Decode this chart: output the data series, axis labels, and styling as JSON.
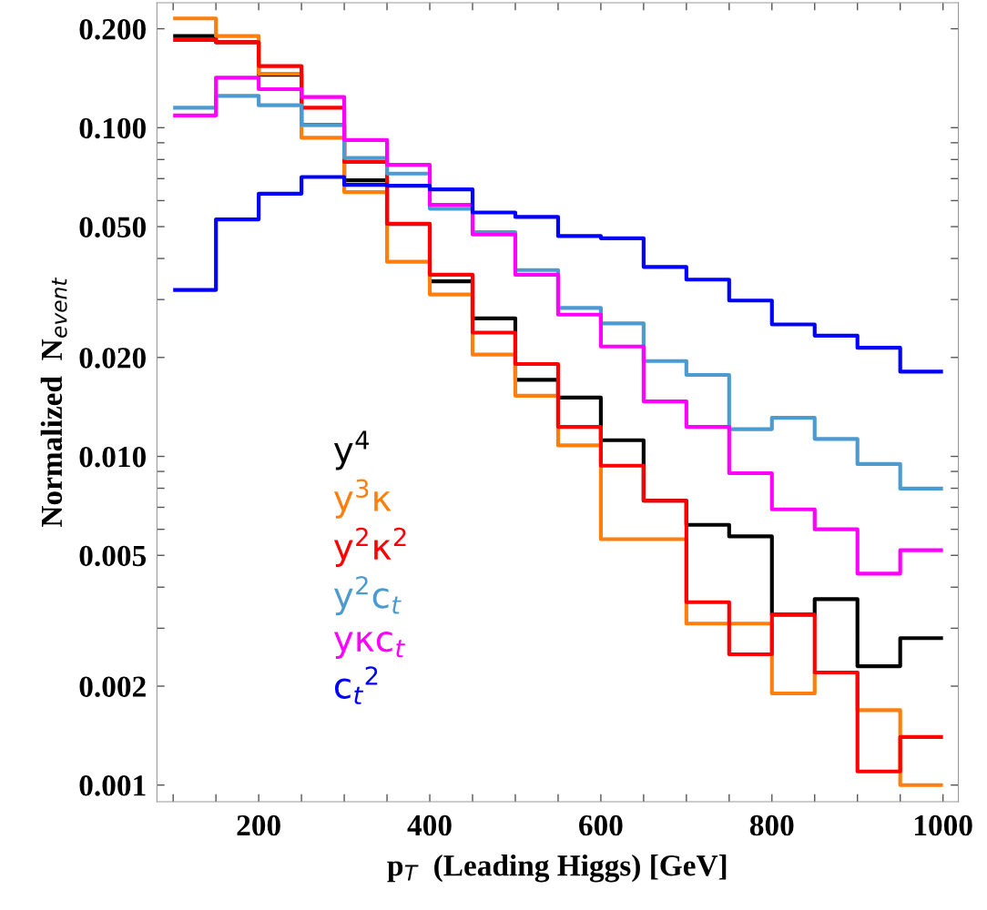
{
  "chart_data": {
    "type": "histogram",
    "xlabel": "p$_{T}$  (Leading Higgs) [GeV]",
    "ylabel": "Normalized  N$_{event}$",
    "bins": [
      100,
      150,
      200,
      250,
      300,
      350,
      400,
      450,
      500,
      550,
      600,
      650,
      700,
      750,
      800,
      850,
      900,
      950,
      1000
    ],
    "series": [
      {
        "name": "y$^{4}$",
        "color": "#000000",
        "values": [
          0.19,
          0.182,
          0.145,
          0.102,
          0.0692,
          0.0509,
          0.0341,
          0.0263,
          0.0171,
          0.0151,
          0.0112,
          0.00733,
          0.00619,
          0.00571,
          0.0033,
          0.00368,
          0.0023,
          0.0028
        ]
      },
      {
        "name": "y$^{3}$κ",
        "color": "#ff7f0e",
        "values": [
          0.215,
          0.19,
          0.146,
          0.0932,
          0.0637,
          0.0391,
          0.0311,
          0.0204,
          0.0153,
          0.0108,
          0.0056,
          0.0056,
          0.0031,
          0.0031,
          0.0019,
          0.0022,
          0.00169,
          0.001
        ]
      },
      {
        "name": "y$^{2}$κ$^{2}$",
        "color": "#ff0000",
        "values": [
          0.185,
          0.182,
          0.154,
          0.115,
          0.0787,
          0.051,
          0.0357,
          0.0238,
          0.0191,
          0.0123,
          0.00937,
          0.00733,
          0.0036,
          0.0025,
          0.0033,
          0.0022,
          0.0011,
          0.0014
        ]
      },
      {
        "name": "y$^{2}$c$_{t}$",
        "color": "#4c9bd0",
        "values": [
          0.115,
          0.125,
          0.117,
          0.102,
          0.0809,
          0.0725,
          0.0567,
          0.0481,
          0.0369,
          0.0283,
          0.0254,
          0.0195,
          0.0177,
          0.0121,
          0.0131,
          0.0113,
          0.00948,
          0.00798
        ]
      },
      {
        "name": "yκc$_{t}$",
        "color": "#ff00ff",
        "values": [
          0.109,
          0.142,
          0.131,
          0.124,
          0.0917,
          0.0771,
          0.0583,
          0.0473,
          0.0357,
          0.027,
          0.0216,
          0.0147,
          0.0123,
          0.00889,
          0.0069,
          0.006,
          0.0044,
          0.00518
        ]
      },
      {
        "name": "c$_{t}$$^{2}$",
        "color": "#0000ff",
        "values": [
          0.0321,
          0.0526,
          0.063,
          0.0708,
          0.067,
          0.0666,
          0.0649,
          0.0552,
          0.0535,
          0.0468,
          0.0461,
          0.0377,
          0.0345,
          0.0298,
          0.0252,
          0.0233,
          0.0214,
          0.0181
        ]
      }
    ],
    "log": "y",
    "xlim": [
      81,
      1018
    ],
    "ylim": [
      0.00089,
      0.24
    ],
    "xticks": [
      {
        "value": 100,
        "label": null
      },
      {
        "value": 150,
        "label": null
      },
      200,
      {
        "value": 250,
        "label": null
      },
      {
        "value": 300,
        "label": null
      },
      {
        "value": 350,
        "label": null
      },
      400,
      {
        "value": 450,
        "label": null
      },
      {
        "value": 500,
        "label": null
      },
      {
        "value": 550,
        "label": null
      },
      600,
      {
        "value": 650,
        "label": null
      },
      {
        "value": 700,
        "label": null
      },
      {
        "value": 750,
        "label": null
      },
      800,
      {
        "value": 850,
        "label": null
      },
      {
        "value": 900,
        "label": null
      },
      {
        "value": 950,
        "label": null
      },
      1000
    ],
    "yticks": [
      0.001,
      0.002,
      {
        "value": 0.003,
        "label": null
      },
      {
        "value": 0.004,
        "label": null
      },
      0.005,
      {
        "value": 0.006,
        "label": null
      },
      {
        "value": 0.007,
        "label": null
      },
      {
        "value": 0.008,
        "label": null
      },
      {
        "value": 0.009,
        "label": null
      },
      {
        "value": 0.01,
        "label": "0.010"
      },
      {
        "value": 0.02,
        "label": "0.020"
      },
      {
        "value": 0.03,
        "label": null
      },
      {
        "value": 0.04,
        "label": null
      },
      {
        "value": 0.05,
        "label": "0.050"
      },
      {
        "value": 0.06,
        "label": null
      },
      {
        "value": 0.07,
        "label": null
      },
      {
        "value": 0.08,
        "label": null
      },
      {
        "value": 0.09,
        "label": null
      },
      {
        "value": 0.1,
        "label": "0.100"
      },
      {
        "value": 0.2,
        "label": "0.200"
      }
    ],
    "grid": false,
    "legend": "bottom left"
  }
}
